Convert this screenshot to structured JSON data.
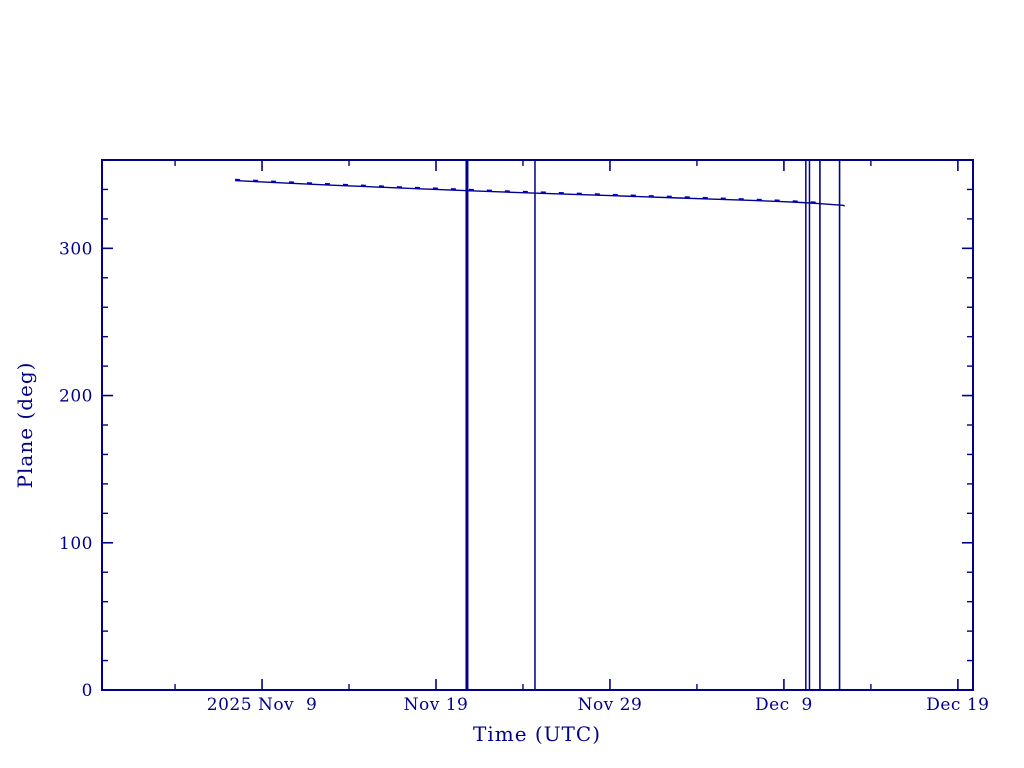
{
  "figure": {
    "background": "#ffffff",
    "accent": "#00008B",
    "dash_accent": "#0000C4"
  },
  "chart_data": {
    "type": "line",
    "title": "",
    "xlabel": "Time (UTC)",
    "ylabel": "Plane (deg)",
    "grid": false,
    "legend": "none",
    "x_axis": {
      "unit": "days relative to 2025 Nov 9 tick",
      "range": [
        -9.2,
        40.87
      ],
      "major_ticks": [
        {
          "day": 0,
          "label": "2025 Nov  9"
        },
        {
          "day": 10,
          "label": "Nov 19"
        },
        {
          "day": 20,
          "label": "Nov 29"
        },
        {
          "day": 30,
          "label": "Dec  9"
        },
        {
          "day": 40,
          "label": "Dec 19"
        }
      ],
      "minor_tick_days": [
        -5,
        5,
        15,
        25,
        35
      ]
    },
    "y_axis": {
      "range": [
        0,
        360
      ],
      "major_ticks": [
        {
          "value": 0,
          "label": "0"
        },
        {
          "value": 100,
          "label": "100"
        },
        {
          "value": 200,
          "label": "200"
        },
        {
          "value": 300,
          "label": "300"
        }
      ],
      "minor_tick_step": 20
    },
    "series": [
      {
        "name": "plane-angle-solid",
        "style": "solid",
        "width": 1.4,
        "color": "#00008B",
        "points": [
          [
            -1.55,
            346.0
          ],
          [
            0,
            345.1
          ],
          [
            2,
            344.0
          ],
          [
            4,
            342.9
          ],
          [
            6,
            341.9
          ],
          [
            8,
            340.9
          ],
          [
            10,
            340.0
          ],
          [
            12,
            339.1
          ],
          [
            14,
            338.2
          ],
          [
            16,
            337.4
          ],
          [
            18,
            336.6
          ],
          [
            20,
            335.8
          ],
          [
            22,
            335.0
          ],
          [
            24,
            334.2
          ],
          [
            26,
            333.4
          ],
          [
            28,
            332.6
          ],
          [
            30,
            331.7
          ],
          [
            31,
            331.1
          ],
          [
            32,
            330.4
          ],
          [
            32.8,
            329.7
          ],
          [
            33.4,
            329.2
          ],
          [
            33.5,
            328.8
          ]
        ]
      },
      {
        "name": "plane-angle-dashed",
        "style": "dashed",
        "width": 2.3,
        "color": "#0000C4",
        "dash": "5 13",
        "points": [
          [
            -1.55,
            346.5
          ],
          [
            0,
            345.6
          ],
          [
            2,
            344.5
          ],
          [
            4,
            343.4
          ],
          [
            6,
            342.4
          ],
          [
            8,
            341.4
          ],
          [
            10,
            340.5
          ],
          [
            12,
            339.6
          ],
          [
            14,
            338.7
          ],
          [
            16,
            337.9
          ],
          [
            18,
            337.1
          ],
          [
            20,
            336.3
          ],
          [
            22,
            335.5
          ],
          [
            24,
            334.7
          ],
          [
            26,
            333.9
          ],
          [
            28,
            333.1
          ],
          [
            30,
            332.2
          ],
          [
            31,
            331.6
          ],
          [
            32,
            330.9
          ],
          [
            32.3,
            330.6
          ]
        ]
      }
    ],
    "event_lines": [
      {
        "day": 11.78,
        "width": 3.0
      },
      {
        "day": 15.69,
        "width": 1.5
      },
      {
        "day": 31.26,
        "width": 1.5
      },
      {
        "day": 31.47,
        "width": 1.5
      },
      {
        "day": 32.07,
        "width": 1.6
      },
      {
        "day": 33.2,
        "width": 1.6
      }
    ]
  }
}
